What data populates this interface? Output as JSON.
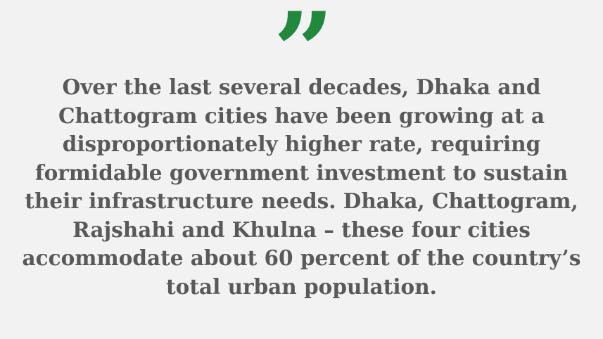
{
  "quote": {
    "mark": "”",
    "lines": [
      "Over the last several decades, Dhaka and",
      "Chattogram cities have been growing at a",
      "disproportionately higher rate, requiring",
      "formidable government investment to sustain",
      "their infrastructure needs. Dhaka, Chattogram,",
      "Rajshahi and Khulna – these four cities",
      "accommodate about 60 percent of the country’s",
      "total urban population."
    ]
  },
  "colors": {
    "accent": "#1f8a3c",
    "text": "#595959",
    "background": "#f2f2f2"
  }
}
